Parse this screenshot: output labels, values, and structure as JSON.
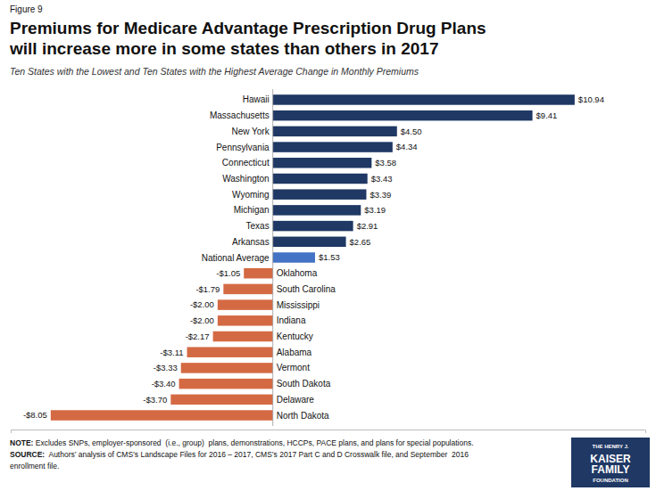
{
  "chart_data": {
    "type": "bar",
    "orientation": "horizontal",
    "title": [
      "Premiums for Medicare Advantage Prescription Drug Plans",
      "will increase more in some states than others in 2017"
    ],
    "subtitle": "Ten States with the Lowest and Ten States with the Highest Average Change in Monthly Premiums",
    "annotations": [
      "Figure 9",
      "NOTE: Excludes SNPs, employer-sponsored  (i.e., group)  plans, demonstrations, HCCPs, PACE plans, and plans for special populations.",
      "SOURCE:  Authors’ analysis of CMS’s Landscape Files for 2016 – 2017, CMS’s 2017 Part C and D Crosswalk file, and September  2016",
      "enrollment file.",
      "THE HENRY J.",
      "KAISER",
      "FAMILY",
      "FOUNDATION"
    ],
    "categories": [
      "Hawaii",
      "Massachusetts",
      "New York",
      "Pennsylvania",
      "Connecticut",
      "Washington",
      "Wyoming",
      "Michigan",
      "Texas",
      "Arkansas",
      "National Average",
      "Oklahoma",
      "South Carolina",
      "Mississippi",
      "Indiana",
      "Kentucky",
      "Alabama",
      "Vermont",
      "South Dakota",
      "Delaware",
      "North Dakota"
    ],
    "values": [
      10.94,
      9.41,
      4.5,
      4.34,
      3.58,
      3.43,
      3.39,
      3.19,
      2.91,
      2.65,
      1.53,
      -1.05,
      -1.79,
      -2.0,
      -2.0,
      -2.17,
      -3.11,
      -3.33,
      -3.4,
      -3.7,
      -8.05
    ],
    "value_labels": [
      "$10.94",
      "$9.41",
      "$4.50",
      "$4.34",
      "$3.58",
      "$3.43",
      "$3.39",
      "$3.19",
      "$2.91",
      "$2.65",
      "$1.53",
      "-$1.05",
      "-$1.79",
      "-$2.00",
      "-$2.00",
      "-$2.17",
      "-$3.11",
      "-$3.33",
      "-$3.40",
      "-$3.70",
      "-$8.05"
    ],
    "colors": [
      "#1f3864",
      "#1f3864",
      "#1f3864",
      "#1f3864",
      "#1f3864",
      "#1f3864",
      "#1f3864",
      "#1f3864",
      "#1f3864",
      "#1f3864",
      "#4472c4",
      "#d46a43",
      "#d46a43",
      "#d46a43",
      "#d46a43",
      "#d46a43",
      "#d46a43",
      "#d46a43",
      "#d46a43",
      "#d46a43",
      "#d46a43"
    ],
    "data_labels": true,
    "xlim": [
      -9.5,
      13.5
    ],
    "tick_labels": "y",
    "grid": false
  }
}
